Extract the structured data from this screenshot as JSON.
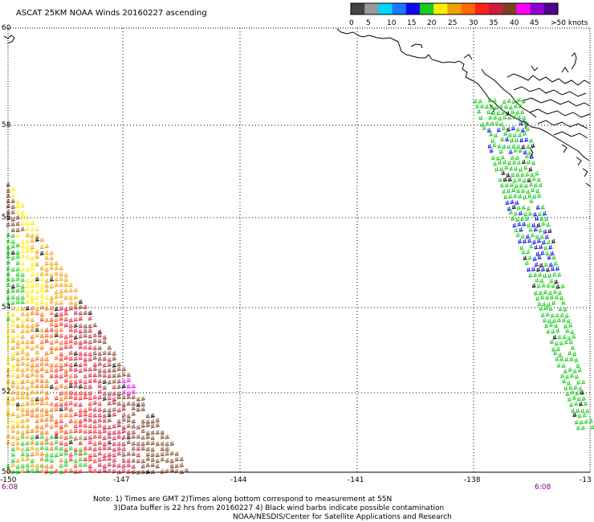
{
  "title": "ASCAT 25KM NOAA Winds 20160227 ascending",
  "legend": {
    "tick_labels": [
      "0",
      "5",
      "10",
      "15",
      "20",
      "25",
      "30",
      "35",
      "40",
      "45",
      ">50 knots"
    ],
    "colors": [
      "#444444",
      "#999999",
      "#00d8ff",
      "#1a78ff",
      "#0a0af0",
      "#1acc1a",
      "#ffee00",
      "#f0a000",
      "#ff6a00",
      "#ff2020",
      "#d01a40",
      "#7a4020",
      "#ff00ff",
      "#9000d0",
      "#500090"
    ]
  },
  "axes": {
    "x_ticks": [
      "-150",
      "-147",
      "-144",
      "-141",
      "-138",
      "-13"
    ],
    "y_ticks": [
      "60",
      "58",
      "56",
      "54",
      "52",
      "50"
    ],
    "lon_range": [
      -150,
      -135
    ],
    "lat_range": [
      50,
      60
    ],
    "grid": "dotted"
  },
  "times": {
    "left": "6:08",
    "right": "6:08"
  },
  "notes": [
    "Note: 1) Times are GMT 2)Times along bottom correspond to measurement at 55N",
    "3)Data buffer is 22 hrs from 20160227 4) Black wind barbs indicate possible contamination",
    "NOAA/NESDIS/Center for Satellite Applications and Research"
  ],
  "swaths": [
    {
      "name": "west-swath",
      "dominant_speeds_knots": "25-45",
      "max_color": "magenta"
    },
    {
      "name": "east-swath",
      "dominant_speeds_knots": "15-25"
    }
  ]
}
